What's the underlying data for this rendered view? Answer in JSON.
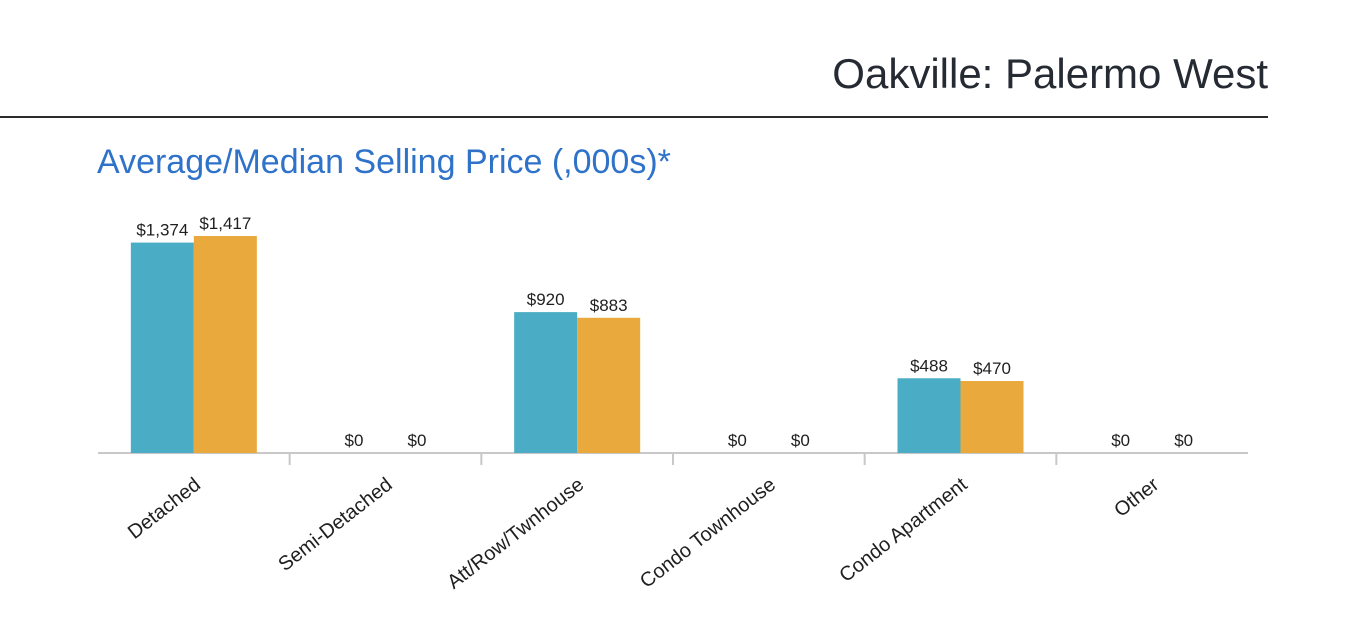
{
  "header": {
    "title": "Oakville: Palermo West"
  },
  "chart_data": {
    "type": "bar",
    "title": "Average/Median Selling Price (,000s)*",
    "xlabel": "",
    "ylabel": "",
    "categories": [
      "Detached",
      "Semi-Detached",
      "Att/Row/Twnhouse",
      "Condo Townhouse",
      "Condo Apartment",
      "Other"
    ],
    "series": [
      {
        "name": "Average",
        "color": "#4badc5",
        "values": [
          1374,
          0,
          920,
          0,
          488,
          0
        ],
        "labels": [
          "$1,374",
          "$0",
          "$920",
          "$0",
          "$488",
          "$0"
        ]
      },
      {
        "name": "Median",
        "color": "#e9a93c",
        "values": [
          1417,
          0,
          883,
          0,
          470,
          0
        ],
        "labels": [
          "$1,417",
          "$0",
          "$883",
          "$0",
          "$470",
          "$0"
        ]
      }
    ],
    "ylim": [
      0,
      1417
    ],
    "grid": false,
    "legend": "none"
  },
  "colors": {
    "title": "#262b33",
    "chart_title": "#2f72c9",
    "axis": "#c8c8c8"
  }
}
